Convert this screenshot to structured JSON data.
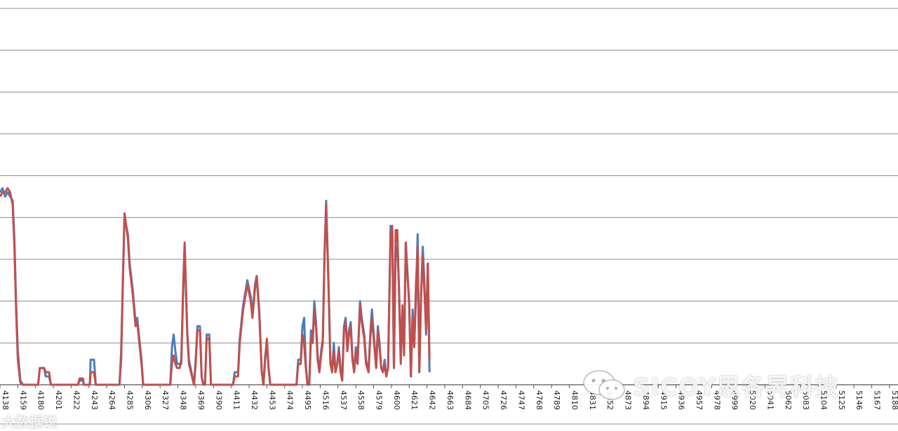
{
  "chart_data": {
    "type": "line",
    "title": "",
    "xlabel": "",
    "ylabel": "",
    "grid": true,
    "legend": "none",
    "ylim": [
      0,
      9
    ],
    "x_tick_labels": [
      "4138",
      "4159",
      "4180",
      "4201",
      "4222",
      "4243",
      "4264",
      "4285",
      "4306",
      "4327",
      "4348",
      "4369",
      "4390",
      "4411",
      "4432",
      "4453",
      "4474",
      "4495",
      "4516",
      "4537",
      "4558",
      "4579",
      "4600",
      "4621",
      "4642",
      "4663",
      "4684",
      "4705",
      "4726",
      "4747",
      "4768",
      "4789",
      "4810",
      "4831",
      "4852",
      "4873",
      "4894",
      "4915",
      "4936",
      "4957",
      "4978",
      "4999",
      "5020",
      "5041",
      "5062",
      "5083",
      "5104",
      "5125",
      "5146",
      "5167",
      "5188"
    ],
    "x_first": 4138,
    "x_last": 5198,
    "series": [
      {
        "color": "#4a7ebb",
        "points": [
          [
            4138,
            4.6
          ],
          [
            4141,
            4.7
          ],
          [
            4144,
            4.5
          ],
          [
            4147,
            4.6
          ],
          [
            4150,
            4.5
          ],
          [
            4153,
            4.4
          ],
          [
            4155,
            3.5
          ],
          [
            4157,
            2.0
          ],
          [
            4159,
            0.8
          ],
          [
            4162,
            0.1
          ],
          [
            4165,
            0
          ],
          [
            4180,
            0
          ],
          [
            4183,
            0
          ],
          [
            4185,
            0.4
          ],
          [
            4190,
            0.4
          ],
          [
            4192,
            0.2
          ],
          [
            4196,
            0.2
          ],
          [
            4198,
            0
          ],
          [
            4230,
            0
          ],
          [
            4232,
            0.1
          ],
          [
            4236,
            0.1
          ],
          [
            4237,
            0
          ],
          [
            4244,
            0
          ],
          [
            4245,
            0.6
          ],
          [
            4249,
            0.6
          ],
          [
            4251,
            0
          ],
          [
            4279,
            0
          ],
          [
            4281,
            0.8
          ],
          [
            4283,
            2.5
          ],
          [
            4285,
            4.0
          ],
          [
            4289,
            3.6
          ],
          [
            4291,
            2.9
          ],
          [
            4295,
            2.2
          ],
          [
            4298,
            1.5
          ],
          [
            4300,
            1.6
          ],
          [
            4302,
            1.2
          ],
          [
            4305,
            0.6
          ],
          [
            4307,
            0
          ],
          [
            4339,
            0
          ],
          [
            4341,
            0.9
          ],
          [
            4343,
            1.2
          ],
          [
            4345,
            0.8
          ],
          [
            4347,
            0.5
          ],
          [
            4350,
            0.5
          ],
          [
            4352,
            0.5
          ],
          [
            4354,
            2.0
          ],
          [
            4356,
            3.3
          ],
          [
            4359,
            1.3
          ],
          [
            4361,
            0.6
          ],
          [
            4367,
            0
          ],
          [
            4369,
            0.6
          ],
          [
            4371,
            1.4
          ],
          [
            4374,
            1.4
          ],
          [
            4376,
            0.2
          ],
          [
            4378,
            0
          ],
          [
            4380,
            0
          ],
          [
            4382,
            1.2
          ],
          [
            4385,
            1.2
          ],
          [
            4387,
            0
          ],
          [
            4413,
            0
          ],
          [
            4415,
            0.3
          ],
          [
            4419,
            0.3
          ],
          [
            4421,
            1.1
          ],
          [
            4425,
            1.9
          ],
          [
            4430,
            2.5
          ],
          [
            4434,
            2.1
          ],
          [
            4436,
            1.7
          ],
          [
            4439,
            2.4
          ],
          [
            4441,
            2.6
          ],
          [
            4444,
            1.8
          ],
          [
            4447,
            0.3
          ],
          [
            4449,
            0
          ],
          [
            4451,
            0.7
          ],
          [
            4453,
            1.0
          ],
          [
            4455,
            0.4
          ],
          [
            4457,
            0
          ],
          [
            4488,
            0
          ],
          [
            4490,
            0.6
          ],
          [
            4493,
            0.6
          ],
          [
            4495,
            1.4
          ],
          [
            4497,
            1.6
          ],
          [
            4499,
            0.5
          ],
          [
            4501,
            0
          ],
          [
            4503,
            0
          ],
          [
            4505,
            1.3
          ],
          [
            4507,
            1.0
          ],
          [
            4509,
            2.0
          ],
          [
            4511,
            1.5
          ],
          [
            4513,
            0.7
          ],
          [
            4515,
            0.3
          ],
          [
            4517,
            0.8
          ],
          [
            4519,
            1.1
          ],
          [
            4521,
            3.1
          ],
          [
            4523,
            4.4
          ],
          [
            4526,
            2.3
          ],
          [
            4528,
            0.6
          ],
          [
            4530,
            0.3
          ],
          [
            4532,
            1.0
          ],
          [
            4534,
            0.3
          ],
          [
            4536,
            0.5
          ],
          [
            4538,
            0.9
          ],
          [
            4540,
            0.4
          ],
          [
            4542,
            0.1
          ],
          [
            4544,
            1.4
          ],
          [
            4546,
            1.6
          ],
          [
            4548,
            0.9
          ],
          [
            4550,
            1.3
          ],
          [
            4552,
            1.5
          ],
          [
            4554,
            0.7
          ],
          [
            4556,
            0.3
          ],
          [
            4558,
            0.9
          ],
          [
            4560,
            0.5
          ],
          [
            4563,
            2.0
          ],
          [
            4565,
            1.6
          ],
          [
            4568,
            1.2
          ],
          [
            4570,
            0.6
          ],
          [
            4573,
            0.3
          ],
          [
            4575,
            1.2
          ],
          [
            4577,
            1.8
          ],
          [
            4580,
            1.0
          ],
          [
            4582,
            0.4
          ],
          [
            4584,
            1.4
          ],
          [
            4586,
            1.0
          ],
          [
            4588,
            0.4
          ],
          [
            4590,
            0.3
          ],
          [
            4592,
            0.6
          ],
          [
            4594,
            0.2
          ],
          [
            4596,
            0.4
          ],
          [
            4599,
            3.8
          ],
          [
            4601,
            3.7
          ],
          [
            4603,
            0.4
          ],
          [
            4605,
            3.2
          ],
          [
            4607,
            3.3
          ],
          [
            4609,
            2.3
          ],
          [
            4611,
            0.6
          ],
          [
            4613,
            1.6
          ],
          [
            4615,
            0.8
          ],
          [
            4617,
            3.4
          ],
          [
            4619,
            2.7
          ],
          [
            4621,
            1.9
          ],
          [
            4623,
            0.2
          ],
          [
            4625,
            1.8
          ],
          [
            4627,
            1.0
          ],
          [
            4629,
            2.0
          ],
          [
            4631,
            3.6
          ],
          [
            4633,
            0.3
          ],
          [
            4635,
            2.2
          ],
          [
            4637,
            3.3
          ],
          [
            4639,
            2.4
          ],
          [
            4641,
            1.2
          ],
          [
            4643,
            2.9
          ],
          [
            4645,
            0.3
          ]
        ]
      },
      {
        "color": "#c0504d",
        "points": [
          [
            4138,
            4.5
          ],
          [
            4141,
            4.6
          ],
          [
            4144,
            4.6
          ],
          [
            4147,
            4.7
          ],
          [
            4150,
            4.6
          ],
          [
            4153,
            4.3
          ],
          [
            4155,
            3.3
          ],
          [
            4157,
            1.8
          ],
          [
            4159,
            0.6
          ],
          [
            4162,
            0.05
          ],
          [
            4165,
            0
          ],
          [
            4180,
            0
          ],
          [
            4183,
            0
          ],
          [
            4185,
            0.4
          ],
          [
            4190,
            0.4
          ],
          [
            4192,
            0.3
          ],
          [
            4196,
            0.3
          ],
          [
            4198,
            0
          ],
          [
            4230,
            0
          ],
          [
            4232,
            0.15
          ],
          [
            4236,
            0.15
          ],
          [
            4237,
            0
          ],
          [
            4244,
            0
          ],
          [
            4245,
            0.3
          ],
          [
            4249,
            0.3
          ],
          [
            4251,
            0
          ],
          [
            4279,
            0
          ],
          [
            4281,
            0.6
          ],
          [
            4283,
            2.4
          ],
          [
            4285,
            4.1
          ],
          [
            4289,
            3.5
          ],
          [
            4291,
            2.8
          ],
          [
            4295,
            2.1
          ],
          [
            4298,
            1.4
          ],
          [
            4300,
            1.5
          ],
          [
            4302,
            1.1
          ],
          [
            4305,
            0.5
          ],
          [
            4307,
            0
          ],
          [
            4339,
            0
          ],
          [
            4341,
            0.5
          ],
          [
            4343,
            0.7
          ],
          [
            4345,
            0.5
          ],
          [
            4347,
            0.4
          ],
          [
            4350,
            0.4
          ],
          [
            4352,
            0.6
          ],
          [
            4354,
            2.2
          ],
          [
            4356,
            3.4
          ],
          [
            4359,
            1.2
          ],
          [
            4361,
            0.5
          ],
          [
            4367,
            0
          ],
          [
            4369,
            0.5
          ],
          [
            4371,
            1.3
          ],
          [
            4374,
            1.3
          ],
          [
            4376,
            0.2
          ],
          [
            4378,
            0
          ],
          [
            4380,
            0
          ],
          [
            4382,
            1.1
          ],
          [
            4385,
            1.1
          ],
          [
            4387,
            0
          ],
          [
            4413,
            0
          ],
          [
            4415,
            0.2
          ],
          [
            4419,
            0.2
          ],
          [
            4421,
            1.0
          ],
          [
            4425,
            1.8
          ],
          [
            4430,
            2.4
          ],
          [
            4434,
            2.0
          ],
          [
            4436,
            1.6
          ],
          [
            4439,
            2.3
          ],
          [
            4441,
            2.6
          ],
          [
            4444,
            1.7
          ],
          [
            4447,
            0.3
          ],
          [
            4449,
            0
          ],
          [
            4451,
            0.6
          ],
          [
            4453,
            1.1
          ],
          [
            4455,
            0.4
          ],
          [
            4457,
            0
          ],
          [
            4488,
            0
          ],
          [
            4490,
            0.5
          ],
          [
            4493,
            0.5
          ],
          [
            4495,
            1.2
          ],
          [
            4497,
            1.0
          ],
          [
            4499,
            0.4
          ],
          [
            4501,
            0
          ],
          [
            4503,
            0
          ],
          [
            4505,
            1.1
          ],
          [
            4507,
            1.0
          ],
          [
            4509,
            1.8
          ],
          [
            4511,
            1.4
          ],
          [
            4513,
            0.6
          ],
          [
            4515,
            0.3
          ],
          [
            4517,
            0.7
          ],
          [
            4519,
            1.0
          ],
          [
            4521,
            3.0
          ],
          [
            4523,
            4.3
          ],
          [
            4526,
            2.2
          ],
          [
            4528,
            0.5
          ],
          [
            4530,
            0.3
          ],
          [
            4532,
            0.8
          ],
          [
            4534,
            0.3
          ],
          [
            4536,
            0.5
          ],
          [
            4538,
            0.8
          ],
          [
            4540,
            0.3
          ],
          [
            4542,
            0.1
          ],
          [
            4544,
            1.3
          ],
          [
            4546,
            1.5
          ],
          [
            4548,
            0.8
          ],
          [
            4550,
            1.2
          ],
          [
            4552,
            1.4
          ],
          [
            4554,
            0.6
          ],
          [
            4556,
            0.3
          ],
          [
            4558,
            0.8
          ],
          [
            4560,
            0.5
          ],
          [
            4563,
            1.9
          ],
          [
            4565,
            1.5
          ],
          [
            4568,
            1.1
          ],
          [
            4570,
            0.5
          ],
          [
            4573,
            0.3
          ],
          [
            4575,
            1.1
          ],
          [
            4577,
            1.6
          ],
          [
            4580,
            0.9
          ],
          [
            4582,
            0.4
          ],
          [
            4584,
            1.3
          ],
          [
            4586,
            0.9
          ],
          [
            4588,
            0.4
          ],
          [
            4590,
            0.3
          ],
          [
            4592,
            0.5
          ],
          [
            4594,
            0.2
          ],
          [
            4596,
            0.4
          ],
          [
            4599,
            3.5
          ],
          [
            4601,
            3.8
          ],
          [
            4603,
            0.4
          ],
          [
            4605,
            3.7
          ],
          [
            4607,
            3.7
          ],
          [
            4609,
            2.2
          ],
          [
            4611,
            0.5
          ],
          [
            4613,
            1.9
          ],
          [
            4615,
            0.7
          ],
          [
            4617,
            3.4
          ],
          [
            4619,
            2.6
          ],
          [
            4621,
            2.0
          ],
          [
            4623,
            0.2
          ],
          [
            4625,
            1.6
          ],
          [
            4627,
            0.9
          ],
          [
            4629,
            2.4
          ],
          [
            4631,
            3.3
          ],
          [
            4633,
            0.3
          ],
          [
            4635,
            2.1
          ],
          [
            4637,
            3.1
          ],
          [
            4639,
            2.2
          ],
          [
            4641,
            1.3
          ],
          [
            4643,
            2.9
          ],
          [
            4645,
            0.6
          ]
        ]
      }
    ]
  },
  "watermark": {
    "main_text": "SICOY思各昇科技",
    "small_text": "大数据说"
  }
}
